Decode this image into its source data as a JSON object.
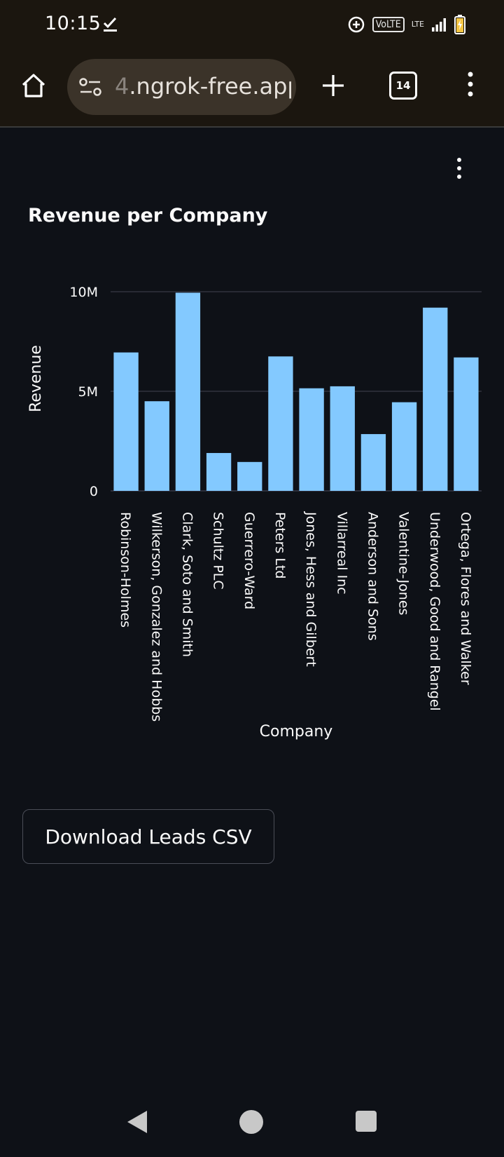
{
  "status_bar": {
    "time": "10:15",
    "volte_label": "VoLTE",
    "lte_label": "LTE",
    "icons": [
      "download-done-icon",
      "data-saver-icon",
      "signal-icon",
      "battery-charging-icon"
    ]
  },
  "browser": {
    "url_prefix": "4",
    "url_text": ".ngrok-free.app",
    "tab_count": "14",
    "icons": [
      "home-icon",
      "site-settings-icon",
      "new-tab-icon",
      "tab-switcher-icon",
      "overflow-menu-icon"
    ]
  },
  "chart_data": {
    "type": "bar",
    "title": "Revenue per Company",
    "xlabel": "Company",
    "ylabel": "Revenue",
    "categories": [
      "Robinson-Holmes",
      "Wilkerson, Gonzalez and Hobbs",
      "Clark, Soto and Smith",
      "Schultz PLC",
      "Guerrero-Ward",
      "Peters Ltd",
      "Jones, Hess and Gilbert",
      "Villarreal Inc",
      "Anderson and Sons",
      "Valentine-Jones",
      "Underwood, Good and Rangel",
      "Ortega, Flores and Walker"
    ],
    "values": [
      6950000,
      4500000,
      9950000,
      1900000,
      1450000,
      6750000,
      5150000,
      5250000,
      2850000,
      4450000,
      9200000,
      6700000
    ],
    "ylim": [
      0,
      10000000
    ],
    "yticks": [
      0,
      5000000,
      10000000
    ],
    "ytick_labels": [
      "0",
      "5M",
      "10M"
    ],
    "bar_color": "#83c9ff",
    "grid": true
  },
  "download_button": {
    "label": "Download Leads CSV"
  },
  "nav_bar": {
    "icons": [
      "back-icon",
      "home-circle-icon",
      "recents-icon"
    ]
  },
  "colors": {
    "background": "#0e1117",
    "browser_chrome": "#1b160f",
    "bar": "#83c9ff"
  }
}
